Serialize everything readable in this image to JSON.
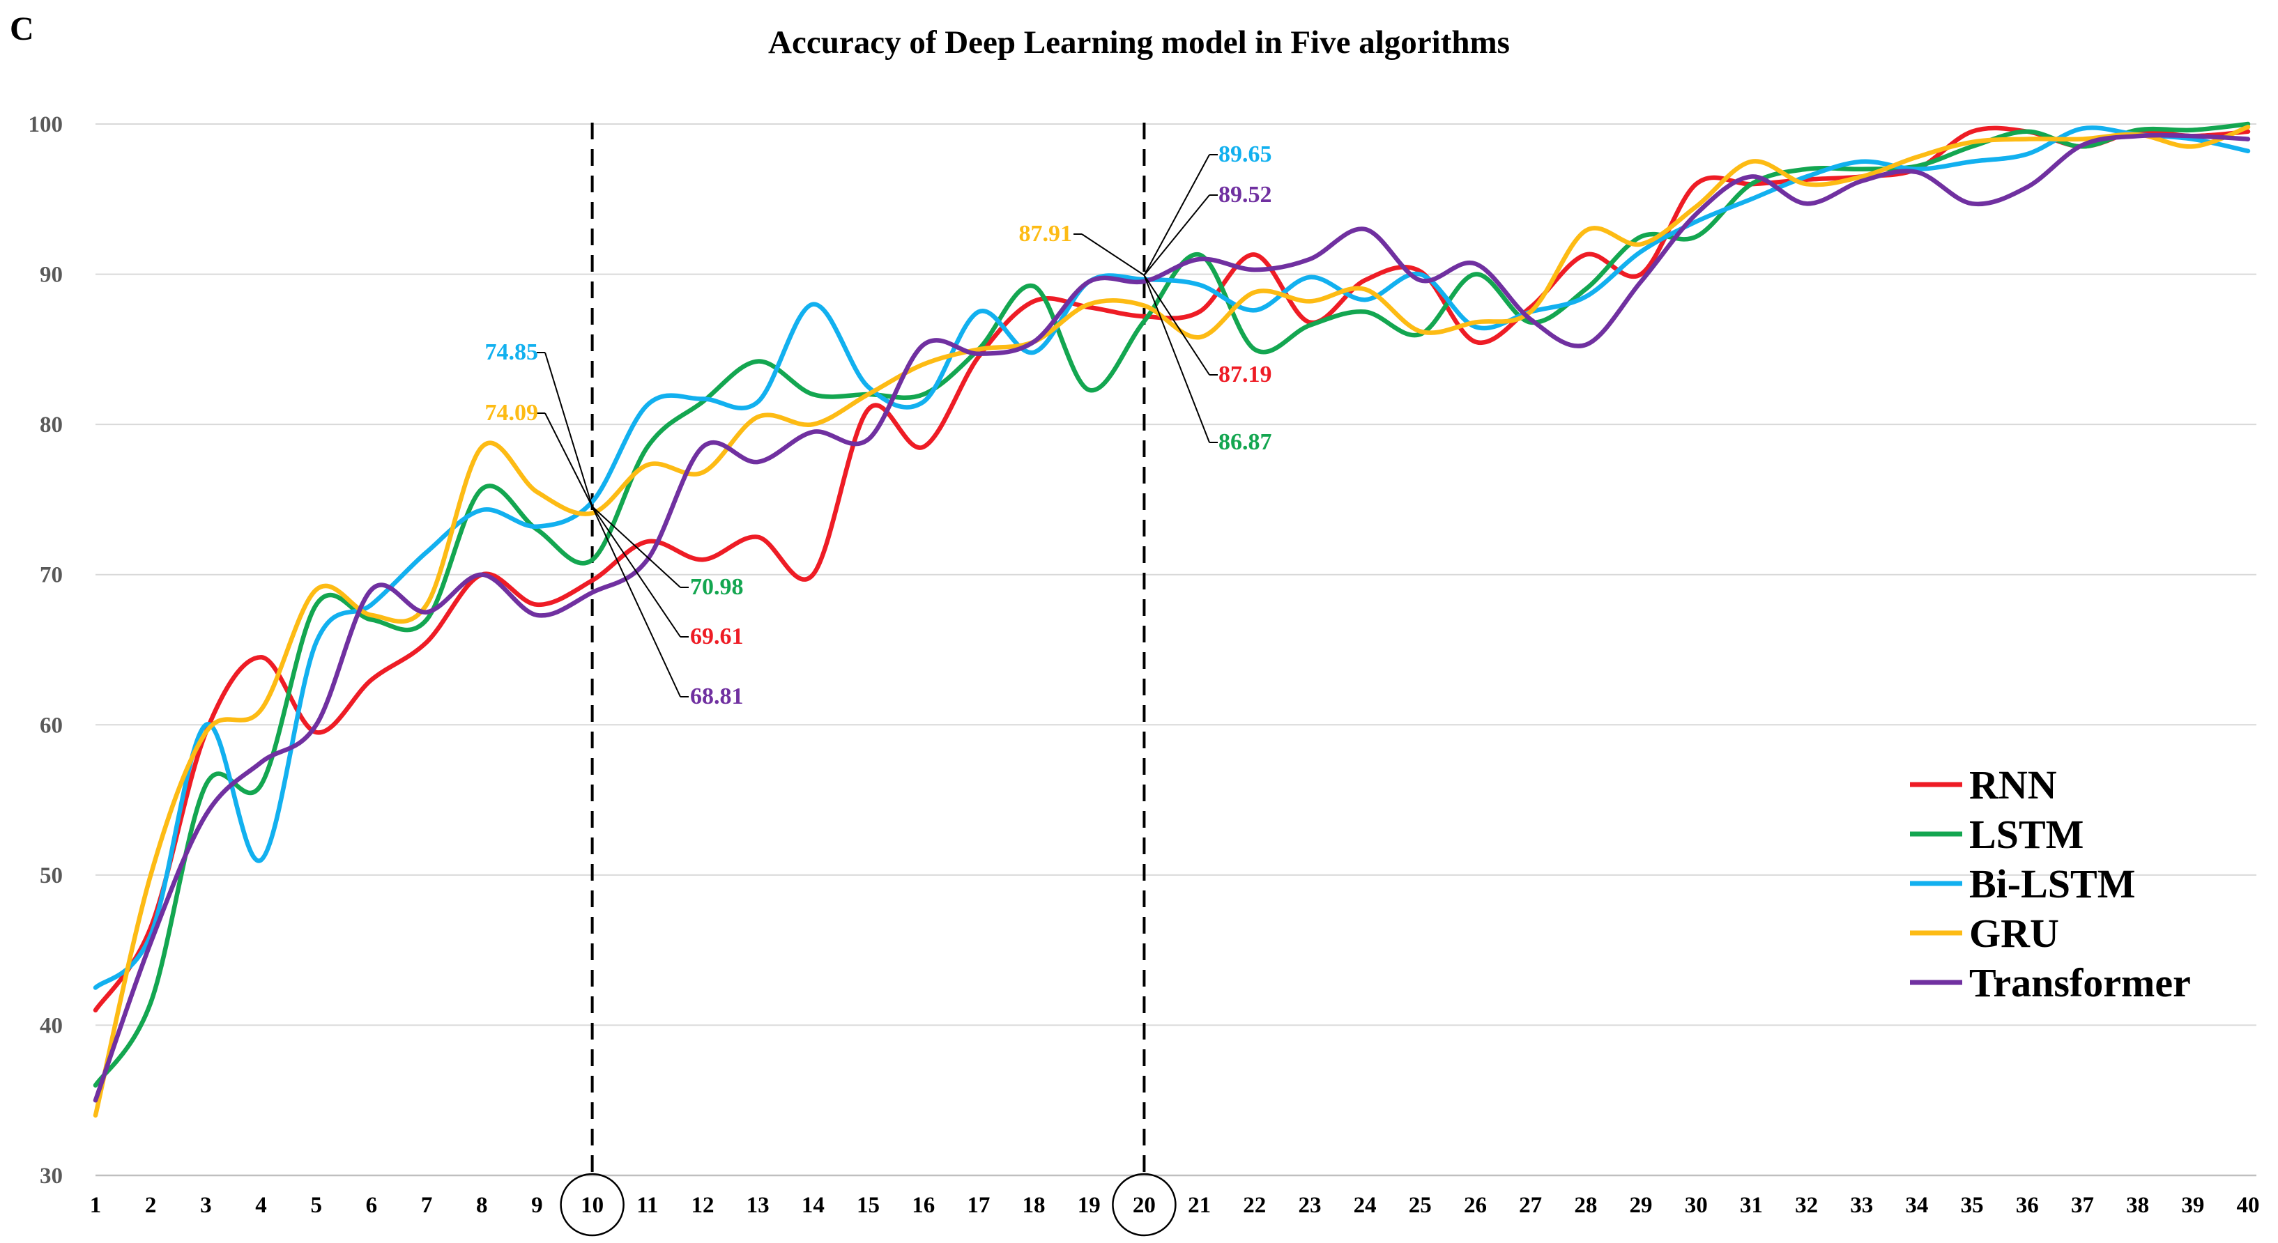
{
  "figure": {
    "panel_label": "C"
  },
  "chart_data": {
    "type": "line",
    "title": "Accuracy of Deep Learning model in Five algorithms",
    "xlabel": "",
    "ylabel": "",
    "x": [
      1,
      2,
      3,
      4,
      5,
      6,
      7,
      8,
      9,
      10,
      11,
      12,
      13,
      14,
      15,
      16,
      17,
      18,
      19,
      20,
      21,
      22,
      23,
      24,
      25,
      26,
      27,
      28,
      29,
      30,
      31,
      32,
      33,
      34,
      35,
      36,
      37,
      38,
      39,
      40
    ],
    "xticks": [
      "1",
      "2",
      "3",
      "4",
      "5",
      "6",
      "7",
      "8",
      "9",
      "10",
      "11",
      "12",
      "13",
      "14",
      "15",
      "16",
      "17",
      "18",
      "19",
      "20",
      "21",
      "22",
      "23",
      "24",
      "25",
      "26",
      "27",
      "28",
      "29",
      "30",
      "31",
      "32",
      "33",
      "34",
      "35",
      "36",
      "37",
      "38",
      "39",
      "40"
    ],
    "circled_xticks": [
      10,
      20
    ],
    "ylim": [
      30,
      100
    ],
    "yticks": [
      30,
      40,
      50,
      60,
      70,
      80,
      90,
      100
    ],
    "grid": true,
    "legend_position": "bottom-right",
    "vertical_reference_lines": [
      10,
      20
    ],
    "series": [
      {
        "name": "RNN",
        "color": "#ee1c25",
        "values": [
          41,
          46.5,
          59.5,
          64.5,
          59.5,
          63,
          65.5,
          70,
          68,
          69.61,
          72.2,
          71,
          72.5,
          70,
          81,
          78.5,
          84.5,
          88.2,
          87.8,
          87.19,
          87.5,
          91.3,
          86.8,
          89.6,
          90.2,
          85.5,
          87.8,
          91.3,
          90,
          96,
          96,
          96.3,
          96.5,
          97,
          99.5,
          99.5,
          98.5,
          99.5,
          99.2,
          99.5
        ]
      },
      {
        "name": "LSTM",
        "color": "#13a650",
        "values": [
          36,
          41.5,
          56,
          56,
          68,
          67,
          67,
          75.7,
          73,
          70.98,
          78.5,
          81.5,
          84.2,
          82,
          82,
          82,
          85,
          89.2,
          82.3,
          86.87,
          91.3,
          85,
          86.6,
          87.5,
          86,
          90,
          86.8,
          89,
          92.5,
          92.5,
          96,
          97,
          97,
          97.2,
          98.5,
          99.5,
          98.5,
          99.6,
          99.6,
          100
        ]
      },
      {
        "name": "Bi-LSTM",
        "color": "#12b0ef",
        "values": [
          42.5,
          46,
          60,
          51,
          65.5,
          68,
          71.5,
          74.3,
          73.2,
          74.85,
          81.3,
          81.7,
          81.5,
          88,
          82.5,
          81.5,
          87.5,
          84.8,
          89.5,
          89.65,
          89.3,
          87.6,
          89.8,
          88.3,
          90,
          86.5,
          87.5,
          88.5,
          91.5,
          93.5,
          95,
          96.5,
          97.5,
          97,
          97.5,
          98,
          99.7,
          99.3,
          99,
          98.2
        ]
      },
      {
        "name": "GRU",
        "color": "#fdbb14",
        "values": [
          34,
          50,
          59.5,
          61,
          69,
          67.3,
          68,
          78.5,
          75.5,
          74.09,
          77.3,
          76.8,
          80.5,
          80,
          82,
          84,
          85,
          85.5,
          88,
          87.91,
          85.8,
          88.8,
          88.2,
          89,
          86.2,
          86.8,
          87.5,
          92.9,
          92,
          94.5,
          97.5,
          96,
          96.5,
          97.8,
          98.8,
          99,
          99,
          99.3,
          98.5,
          99.8
        ]
      },
      {
        "name": "Transformer",
        "color": "#7030a0",
        "values": [
          35,
          45.5,
          54,
          57.5,
          60,
          69,
          67.5,
          70,
          67.3,
          68.81,
          71,
          78.5,
          77.5,
          79.5,
          79,
          85.3,
          84.7,
          85.5,
          89.5,
          89.52,
          91,
          90.3,
          91,
          93,
          89.6,
          90.7,
          87,
          85.3,
          89.5,
          94,
          96.5,
          94.7,
          96.2,
          96.8,
          94.7,
          95.8,
          98.6,
          99.2,
          99.2,
          99
        ]
      }
    ],
    "annotations": [
      {
        "text": "74.85",
        "series": "Bi-LSTM",
        "x": 10
      },
      {
        "text": "74.09",
        "series": "GRU",
        "x": 10
      },
      {
        "text": "70.98",
        "series": "LSTM",
        "x": 10
      },
      {
        "text": "69.61",
        "series": "RNN",
        "x": 10
      },
      {
        "text": "68.81",
        "series": "Transformer",
        "x": 10
      },
      {
        "text": "89.65",
        "series": "Bi-LSTM",
        "x": 20
      },
      {
        "text": "89.52",
        "series": "Transformer",
        "x": 20
      },
      {
        "text": "87.91",
        "series": "GRU",
        "x": 20
      },
      {
        "text": "87.19",
        "series": "RNN",
        "x": 20
      },
      {
        "text": "86.87",
        "series": "LSTM",
        "x": 20
      }
    ]
  }
}
